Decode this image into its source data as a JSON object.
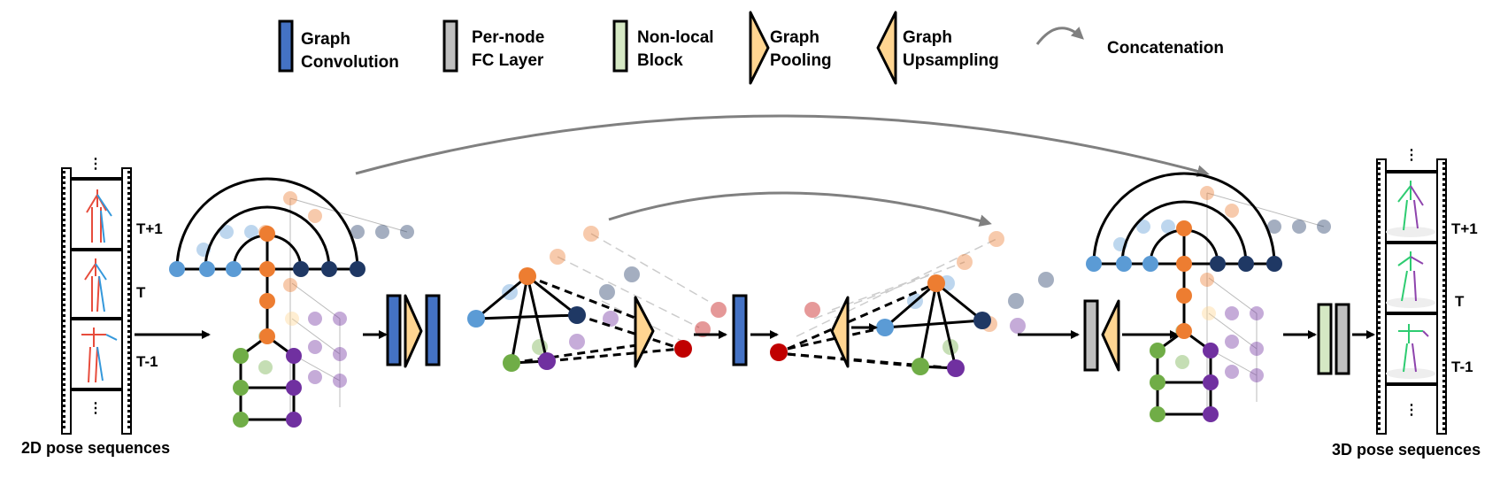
{
  "legend": {
    "graph_convolution": {
      "line1": "Graph",
      "line2": "Convolution"
    },
    "per_node_fc": {
      "line1": "Per-node",
      "line2": "FC Layer"
    },
    "non_local": {
      "line1": "Non-local",
      "line2": "Block"
    },
    "graph_pooling": {
      "line1": "Graph",
      "line2": "Pooling"
    },
    "graph_upsampling": {
      "line1": "Graph",
      "line2": "Upsampling"
    },
    "concatenation": "Concatenation"
  },
  "input": {
    "caption": "2D pose sequences",
    "frames": [
      "T+1",
      "T",
      "T-1"
    ],
    "ellipsis": "⋮"
  },
  "output": {
    "caption": "3D pose sequences",
    "frames": [
      "T+1",
      "T",
      "T-1"
    ],
    "ellipsis": "⋮"
  },
  "colors": {
    "graph_conv": "#4472c4",
    "fc_layer": "#bfbfbf",
    "non_local": "#d5e8c4",
    "pooling": "#ffd591",
    "node_orange": "#ed7d31",
    "node_blue": "#5b9bd5",
    "node_navy": "#1f3864",
    "node_green": "#70ad47",
    "node_purple": "#7030a0",
    "node_red": "#c00000",
    "arc_gray": "#808080"
  }
}
